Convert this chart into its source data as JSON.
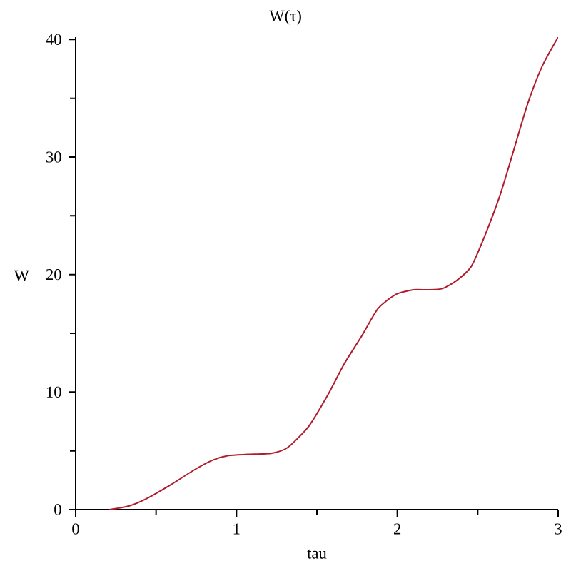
{
  "chart_data": {
    "type": "line",
    "title": "W(τ)",
    "xlabel": "tau",
    "ylabel": "W",
    "x": [
      0.21,
      0.33,
      0.45,
      0.59,
      0.74,
      0.85,
      0.95,
      1.07,
      1.22,
      1.32,
      1.45,
      1.57,
      1.67,
      1.78,
      1.88,
      1.99,
      2.1,
      2.19,
      2.28,
      2.37,
      2.46,
      2.55,
      2.64,
      2.72,
      2.81,
      2.9,
      3.0
    ],
    "values": [
      0,
      0.3,
      1.0,
      2.1,
      3.4,
      4.2,
      4.6,
      4.7,
      4.8,
      5.3,
      7.1,
      9.8,
      12.4,
      14.8,
      17.1,
      18.3,
      18.7,
      18.7,
      18.8,
      19.5,
      20.7,
      23.5,
      26.8,
      30.4,
      34.5,
      37.7,
      40.2
    ],
    "color": "#b01c2c",
    "xlim": [
      0,
      3
    ],
    "ylim": [
      0,
      40.2
    ],
    "xticks": [
      0,
      {
        "value": 0.5,
        "label": null
      },
      1,
      {
        "value": 1.5,
        "label": null
      },
      2,
      {
        "value": 2.5,
        "label": null
      },
      3
    ],
    "yticks": [
      0,
      {
        "value": 5,
        "label": null
      },
      10,
      {
        "value": 15,
        "label": null
      },
      20,
      {
        "value": 25,
        "label": null
      },
      30,
      {
        "value": 35,
        "label": null
      },
      40
    ]
  }
}
